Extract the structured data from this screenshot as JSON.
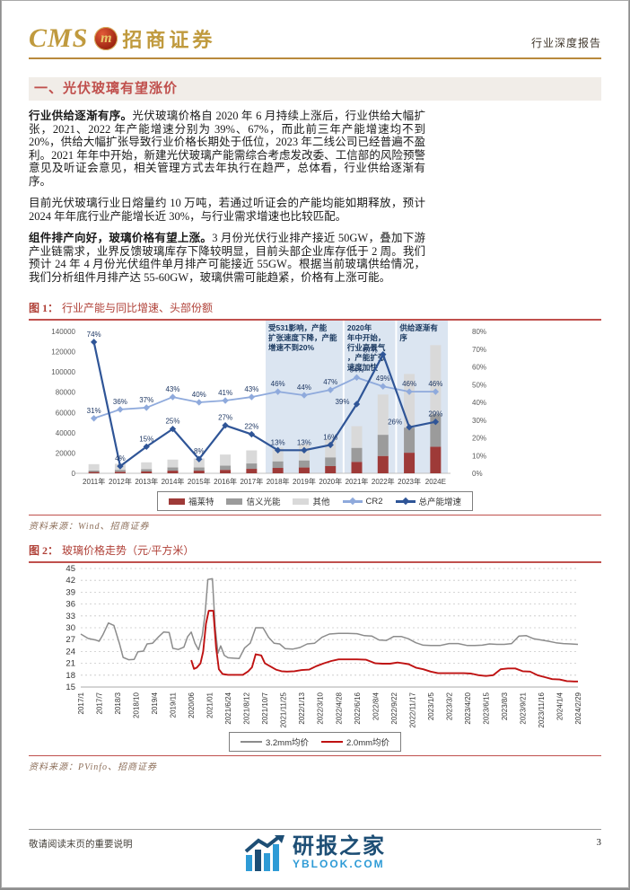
{
  "header": {
    "brand_cms": "CMS",
    "emblem_letter": "m",
    "brand_name": "招商证券",
    "doc_type": "行业深度报告",
    "brand_color": "#c09a3e"
  },
  "section": {
    "title": "一、光伏玻璃有望涨价"
  },
  "body": {
    "paragraphs": [
      {
        "lead": "行业供给逐渐有序。",
        "text": "光伏玻璃价格自 2020 年 6 月持续上涨后，行业供给大幅扩张，2021、2022 年产能增速分别为 39%、67%，而此前三年产能增速均不到 20%，供给大幅扩张导致行业价格长期处于低位，2023 年二线公司已经普遍不盈利。2021 年年中开始，新建光伏玻璃产能需综合考虑发改委、工信部的风险预警意见及听证会意见，相关管理方式去年执行在趋严，总体看，行业供给逐渐有序。"
      },
      {
        "lead": "",
        "text": "目前光伏玻璃行业日熔量约 10 万吨，若通过听证会的产能均能如期释放，预计 2024 年年底行业产能增长近 30%，与行业需求增速也比较匹配。"
      },
      {
        "lead": "组件排产向好，玻璃价格有望上涨。",
        "text": "3 月份光伏行业排产接近 50GW，叠加下游产业链需求，业界反馈玻璃库存下降较明显，目前头部企业库存低于 2 周。我们预计 24 年 4 月份光伏组件单月排产可能接近 55GW。根据当前玻璃供给情况，我们分析组件月排产达 55-60GW，玻璃供需可能趋紧，价格有上涨可能。"
      }
    ]
  },
  "figures": [
    {
      "label": "图 1：",
      "title": "行业产能与同比增速、头部份额",
      "source": "资料来源：Wind、招商证券"
    },
    {
      "label": "图 2：",
      "title": "玻璃价格走势（元/平方米）",
      "source": "资料来源：PVinfo、招商证券"
    }
  ],
  "chart_data": [
    {
      "id": "fig1",
      "type": "bar",
      "title": "行业产能与同比增速、头部份额",
      "categories": [
        "2011年",
        "2012年",
        "2013年",
        "2014年",
        "2015年",
        "2016年",
        "2017年",
        "2018年",
        "2019年",
        "2020年",
        "2021年",
        "2022年",
        "2023年",
        "2024E"
      ],
      "bar_series": [
        {
          "name": "福莱特",
          "color": "#9e3a38",
          "values": [
            1300,
            1500,
            1800,
            2600,
            2600,
            3400,
            4400,
            5300,
            5700,
            7100,
            11300,
            17100,
            20300,
            26200
          ]
        },
        {
          "name": "信义光能",
          "color": "#9b9b9b",
          "values": [
            1500,
            1900,
            2200,
            3200,
            3200,
            4200,
            5300,
            6500,
            7000,
            8600,
            13800,
            20900,
            24800,
            32000
          ]
        },
        {
          "name": "其他",
          "color": "#d9d9d9",
          "values": [
            6200,
            6000,
            6800,
            7700,
            8800,
            10900,
            12900,
            13700,
            16100,
            17700,
            21400,
            39700,
            52900,
            68200
          ]
        }
      ],
      "line_series": [
        {
          "name": "CR2",
          "color": "#8faadc",
          "values_pct": [
            31,
            36,
            37,
            43,
            40,
            41,
            43,
            46,
            44,
            47,
            54,
            49,
            46,
            46
          ]
        },
        {
          "name": "总产能增速",
          "color": "#2f5597",
          "values_pct": [
            74,
            4,
            15,
            25,
            8,
            27,
            22,
            13,
            13,
            16,
            39,
            67,
            26,
            29
          ]
        }
      ],
      "left_axis": {
        "min": 0,
        "max": 140000,
        "step": 20000
      },
      "right_axis": {
        "min": 0,
        "max": 80,
        "step": 10,
        "suffix": "%"
      },
      "annotations": [
        {
          "from": 7,
          "to": 9,
          "label": "受531影响，产能扩张速度下降，产能增速不到20%"
        },
        {
          "from": 10,
          "to": 11,
          "label": "2020年年中开始，行业高景气，产能扩张速度加快"
        },
        {
          "from": 12,
          "to": 13,
          "label": "供给逐渐有序"
        }
      ],
      "band_color": "#dbe5f1",
      "label_color": "#1f3864",
      "legend_position": "bottom"
    },
    {
      "id": "fig2",
      "type": "line",
      "title": "玻璃价格走势（元/平方米）",
      "x_ticks": [
        "2017/1",
        "2017/7",
        "2018/3",
        "2018/10",
        "2019/4",
        "2019/11",
        "2020/06",
        "2021/01",
        "2021/6/24",
        "2021/8/12",
        "2021/10/7",
        "2021/11/25",
        "2022/1/13",
        "2022/3/10",
        "2022/4/28",
        "2022/6/16",
        "2022/8/4",
        "2022/9/22",
        "2022/11/17",
        "2023/1/5",
        "2023/3/2",
        "2023/4/20",
        "2023/6/15",
        "2023/8/3",
        "2023/9/21",
        "2023/11/16",
        "2024/1/4",
        "2024/2/29"
      ],
      "ylim": [
        15,
        45
      ],
      "ystep": 3,
      "grid": "dashed-horizontal",
      "legend_position": "bottom",
      "series": [
        {
          "name": "3.2mm均价",
          "color": "#8c8c8c",
          "points": [
            [
              0,
              28.4
            ],
            [
              0.4,
              27.3
            ],
            [
              0.8,
              26.9
            ],
            [
              1,
              26.6
            ],
            [
              1.2,
              28.2
            ],
            [
              1.5,
              31.2
            ],
            [
              1.8,
              30.6
            ],
            [
              2.1,
              26
            ],
            [
              2.3,
              22.5
            ],
            [
              2.6,
              21.9
            ],
            [
              2.9,
              22
            ],
            [
              3.1,
              23.9
            ],
            [
              3.4,
              24.1
            ],
            [
              3.6,
              25.9
            ],
            [
              3.9,
              26.1
            ],
            [
              4.2,
              27.6
            ],
            [
              4.5,
              28.9
            ],
            [
              4.8,
              28.8
            ],
            [
              5,
              24.8
            ],
            [
              5.3,
              24.5
            ],
            [
              5.6,
              25.1
            ],
            [
              5.8,
              27.7
            ],
            [
              6,
              28.9
            ],
            [
              6.2,
              26.1
            ],
            [
              6.4,
              24.4
            ],
            [
              6.6,
              28.1
            ],
            [
              6.75,
              33.5
            ],
            [
              6.9,
              42.2
            ],
            [
              7.15,
              42.4
            ],
            [
              7.3,
              30
            ],
            [
              7.45,
              23.6
            ],
            [
              7.6,
              25.4
            ],
            [
              7.8,
              23
            ],
            [
              8,
              22.4
            ],
            [
              8.3,
              22.3
            ],
            [
              8.6,
              22.2
            ],
            [
              8.9,
              24.9
            ],
            [
              9.2,
              26.1
            ],
            [
              9.5,
              30
            ],
            [
              9.9,
              30
            ],
            [
              10.2,
              27.6
            ],
            [
              10.5,
              26.1
            ],
            [
              10.8,
              25.9
            ],
            [
              11.1,
              24.7
            ],
            [
              11.5,
              24.6
            ],
            [
              11.9,
              25
            ],
            [
              12.3,
              25.9
            ],
            [
              12.7,
              26.1
            ],
            [
              13.1,
              27.6
            ],
            [
              13.5,
              28.4
            ],
            [
              14,
              28.6
            ],
            [
              14.5,
              28.6
            ],
            [
              15,
              28.5
            ],
            [
              15.4,
              28
            ],
            [
              15.8,
              27.9
            ],
            [
              16.2,
              26.9
            ],
            [
              16.6,
              26.8
            ],
            [
              17,
              27.8
            ],
            [
              17.4,
              27.8
            ],
            [
              17.8,
              27.2
            ],
            [
              18.2,
              26.2
            ],
            [
              18.6,
              25.6
            ],
            [
              19,
              25.5
            ],
            [
              19.5,
              25.5
            ],
            [
              20,
              26
            ],
            [
              20.5,
              26
            ],
            [
              21,
              25.5
            ],
            [
              21.4,
              25.5
            ],
            [
              21.8,
              25.6
            ],
            [
              22.2,
              25.9
            ],
            [
              22.6,
              25.8
            ],
            [
              23,
              25.8
            ],
            [
              23.4,
              26
            ],
            [
              23.8,
              27.9
            ],
            [
              24.2,
              28
            ],
            [
              24.6,
              27.2
            ],
            [
              25,
              26.9
            ],
            [
              25.4,
              26.6
            ],
            [
              25.8,
              26.2
            ],
            [
              26.2,
              26
            ],
            [
              26.6,
              25.9
            ],
            [
              27,
              25.8
            ]
          ]
        },
        {
          "name": "2.0mm均价",
          "color": "#bf1212",
          "points": [
            [
              6,
              21.8
            ],
            [
              6.15,
              19.6
            ],
            [
              6.3,
              19.9
            ],
            [
              6.5,
              21
            ],
            [
              6.65,
              24
            ],
            [
              6.8,
              31
            ],
            [
              6.95,
              34.3
            ],
            [
              7.2,
              34.3
            ],
            [
              7.35,
              25
            ],
            [
              7.5,
              19.5
            ],
            [
              7.7,
              18.3
            ],
            [
              8,
              18.1
            ],
            [
              8.4,
              18.1
            ],
            [
              8.8,
              18.1
            ],
            [
              9.1,
              19
            ],
            [
              9.3,
              20
            ],
            [
              9.5,
              23.3
            ],
            [
              9.8,
              23
            ],
            [
              10,
              21
            ],
            [
              10.3,
              20.2
            ],
            [
              10.6,
              19.4
            ],
            [
              10.9,
              19
            ],
            [
              11.2,
              18.9
            ],
            [
              11.6,
              19
            ],
            [
              12,
              19.3
            ],
            [
              12.4,
              19.4
            ],
            [
              12.8,
              20.3
            ],
            [
              13.2,
              21
            ],
            [
              13.6,
              21.6
            ],
            [
              14,
              22
            ],
            [
              14.5,
              22
            ],
            [
              15,
              22
            ],
            [
              15.5,
              21.9
            ],
            [
              16,
              21
            ],
            [
              16.4,
              20.9
            ],
            [
              16.8,
              20.9
            ],
            [
              17.2,
              21.2
            ],
            [
              17.5,
              21
            ],
            [
              17.8,
              20.8
            ],
            [
              18.2,
              19.9
            ],
            [
              18.6,
              19.5
            ],
            [
              19,
              18.9
            ],
            [
              19.4,
              18.5
            ],
            [
              19.8,
              18.5
            ],
            [
              20.3,
              18.5
            ],
            [
              20.8,
              18.5
            ],
            [
              21.2,
              18.4
            ],
            [
              21.6,
              18
            ],
            [
              22,
              17.8
            ],
            [
              22.4,
              18
            ],
            [
              22.8,
              19.5
            ],
            [
              23.2,
              19.7
            ],
            [
              23.6,
              19.7
            ],
            [
              24,
              19
            ],
            [
              24.4,
              18.9
            ],
            [
              24.8,
              18
            ],
            [
              25.2,
              17.5
            ],
            [
              25.6,
              17
            ],
            [
              26,
              16.9
            ],
            [
              26.4,
              16.5
            ],
            [
              26.8,
              16.4
            ],
            [
              27,
              16.4
            ]
          ]
        }
      ]
    }
  ],
  "footer": {
    "note": "敬请阅读末页的重要说明",
    "page_number": "3"
  },
  "watermark": {
    "name": "研报之家",
    "site": "YBLOOK.COM"
  },
  "colors": {
    "brand_gold": "#b8893c",
    "section_red": "#c0504d",
    "figure_title_red": "#b04138",
    "band_blue": "#dbe5f1",
    "dark_line": "#2f5597",
    "light_line": "#8faadc",
    "bar_red": "#9e3a38",
    "bar_gray": "#9b9b9b",
    "bar_lightgray": "#d9d9d9",
    "price_gray": "#8c8c8c",
    "price_red": "#bf1212",
    "wm_dark_blue": "#1d4e75",
    "wm_light_blue": "#2e9bd6"
  }
}
